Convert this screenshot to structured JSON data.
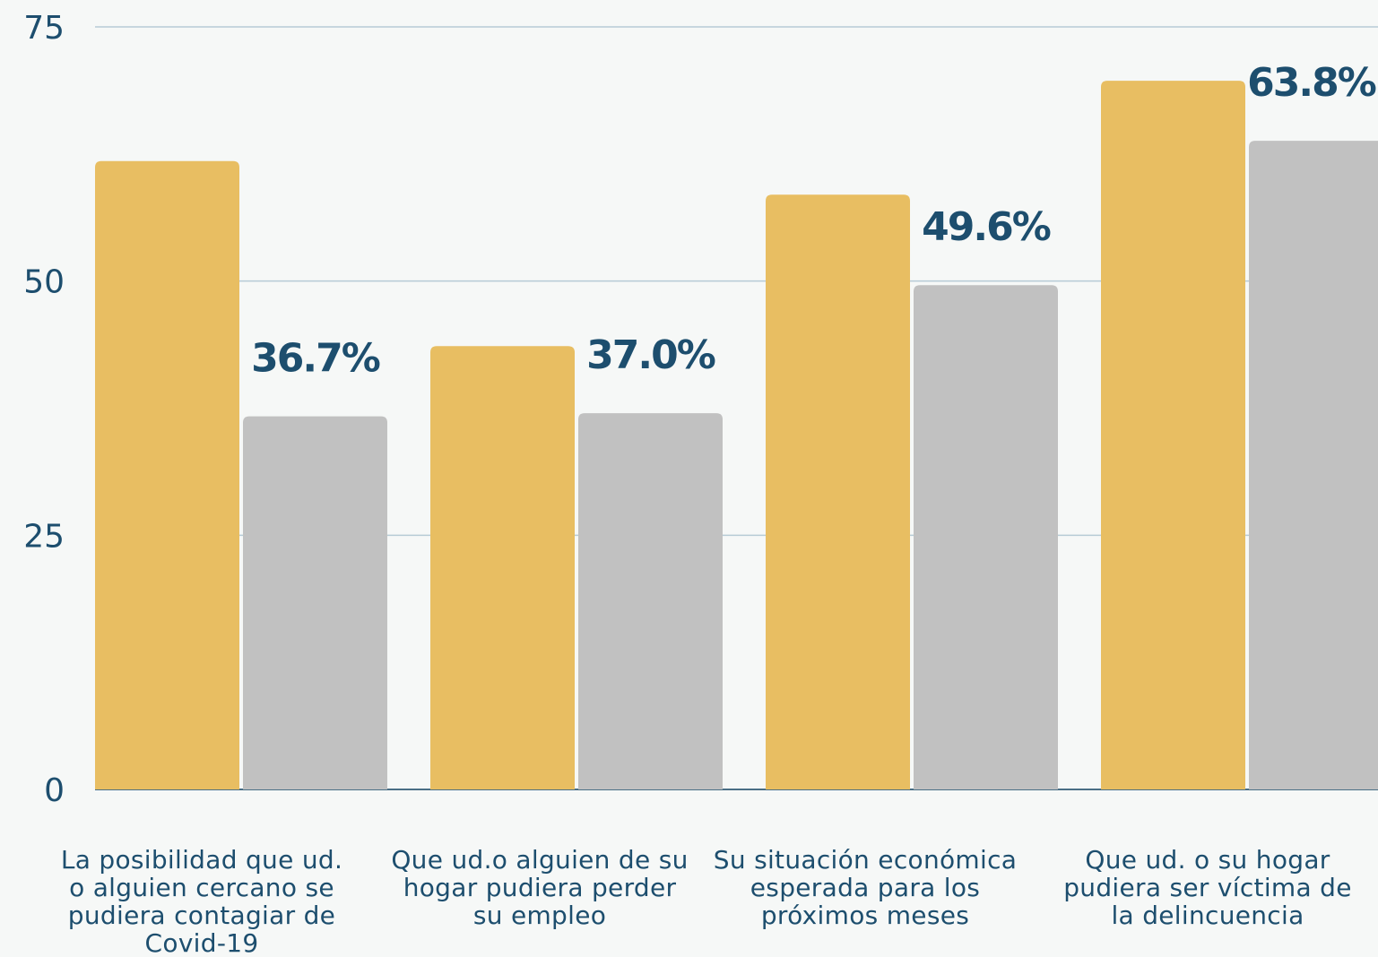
{
  "chart_data": {
    "type": "bar",
    "categories": [
      "La posibilidad que ud. o alguien cercano se pudiera contagiar de Covid-19",
      "Que ud.o alguien de su hogar pudiera perder su empleo",
      "Su situación económica esperada para los próximos meses",
      "Que ud. o su hogar pudiera ser víctima de la delincuencia"
    ],
    "series": [
      {
        "color": "#e8be62",
        "values": [
          61.8,
          43.6,
          58.5,
          69.7
        ]
      },
      {
        "color": "#c1c1c1",
        "values": [
          36.7,
          37.0,
          49.6,
          63.8
        ],
        "labels": [
          "36.7%",
          "37.0%",
          "49.6%",
          "63.8%"
        ]
      }
    ],
    "yticks": [
      "0",
      "25",
      "50",
      "75"
    ],
    "ylim": [
      0,
      75
    ],
    "grid": true,
    "colors": {
      "grid": "#b7cbd6",
      "axis": "#4a6f86",
      "text": "#1d4e6e"
    }
  }
}
